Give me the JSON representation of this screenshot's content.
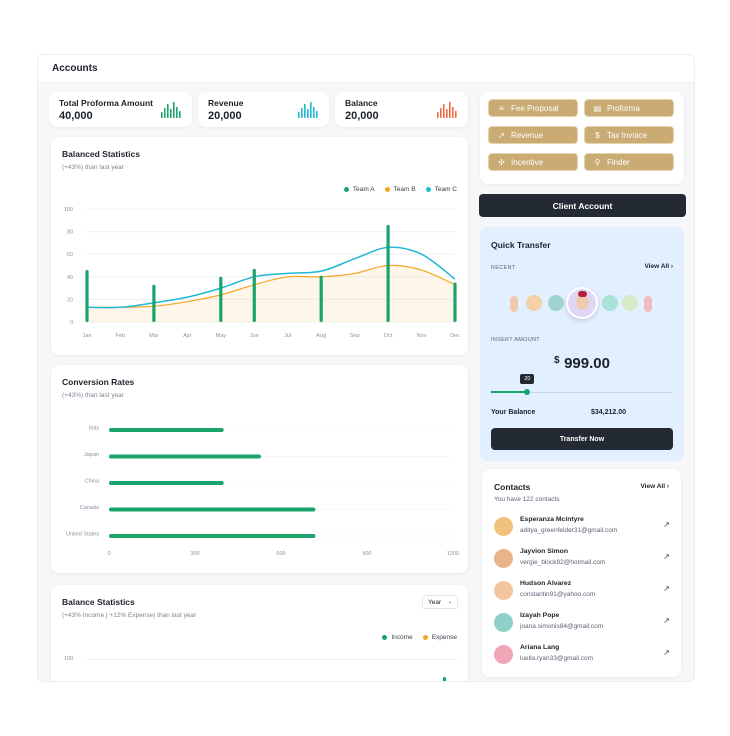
{
  "header": {
    "title": "Accounts"
  },
  "stats": [
    {
      "label": "Total Proforma Amount",
      "value": "40,000",
      "color": "#1aa36b"
    },
    {
      "label": "Revenue",
      "value": "20,000",
      "color": "#22b7d6"
    },
    {
      "label": "Balance",
      "value": "20,000",
      "color": "#ef6a45"
    }
  ],
  "balanced_statistics": {
    "title": "Balanced Statistics",
    "subtitle": "(+43%) than last year",
    "legend": [
      "Team A",
      "Team B",
      "Team C"
    ]
  },
  "conversion_rates": {
    "title": "Conversion Rates",
    "subtitle": "(+43%) than last year"
  },
  "balance_statistics": {
    "title": "Balance Statistics",
    "subtitle": "(+43% Income | +12% Expense) than last year",
    "select_value": "Year",
    "legend": [
      "Income",
      "Expense"
    ],
    "y_tick": "100"
  },
  "quick_links": [
    {
      "label": "Fee Proposal",
      "icon": "fee-proposal-icon",
      "glyph": "≡"
    },
    {
      "label": "Proforma",
      "icon": "document-icon",
      "glyph": "▤"
    },
    {
      "label": "Revenue",
      "icon": "trend-icon",
      "glyph": "↗"
    },
    {
      "label": "Tax Invoice",
      "icon": "invoice-icon",
      "glyph": "$"
    },
    {
      "label": "Incentive",
      "icon": "incentive-icon",
      "glyph": "✣"
    },
    {
      "label": "Finder",
      "icon": "search-icon",
      "glyph": "⚲"
    }
  ],
  "client_account": {
    "label": "Client Account"
  },
  "quick_transfer": {
    "title": "Quick Transfer",
    "recent_label": "RECENT",
    "view_all": "View All",
    "insert_amount_label": "INSERT AMOUNT",
    "currency": "$",
    "amount": "999.00",
    "slider_value": "20",
    "slider_fraction": 0.2,
    "your_balance_label": "Your Balance",
    "your_balance": "$34,212.00",
    "transfer_button": "Transfer Now"
  },
  "contacts": {
    "title": "Contacts",
    "subtitle": "You have 122 contacts",
    "view_all": "View All",
    "items": [
      {
        "name": "Esperanza Mcintyre",
        "email": "aditya_greenfelder31@gmail.com",
        "avatar_color": "#f1c27d"
      },
      {
        "name": "Jayvion Simon",
        "email": "vergie_block82@hotmail.com",
        "avatar_color": "#e9b48a"
      },
      {
        "name": "Hudson Alvarez",
        "email": "constantin91@yahoo.com",
        "avatar_color": "#f3c6a0"
      },
      {
        "name": "Izayah Pope",
        "email": "joana.simonis84@gmail.com",
        "avatar_color": "#8fd0c8"
      },
      {
        "name": "Ariana Lang",
        "email": "luella.ryan33@gmail.com",
        "avatar_color": "#f0a6b6"
      }
    ]
  },
  "chart_data": [
    {
      "type": "line",
      "title": "Balanced Statistics",
      "categories": [
        "Jan",
        "Feb",
        "Mar",
        "Apr",
        "May",
        "Jun",
        "Jul",
        "Aug",
        "Sep",
        "Oct",
        "Nov",
        "Dec"
      ],
      "ylim": [
        0,
        100
      ],
      "yticks": [
        0,
        20,
        40,
        60,
        80,
        100
      ],
      "series": [
        {
          "name": "Team A",
          "kind": "bar",
          "color": "#1aa36b",
          "values": [
            46,
            null,
            33,
            null,
            40,
            47,
            null,
            41,
            null,
            86,
            null,
            35
          ]
        },
        {
          "name": "Team B",
          "kind": "area",
          "color": "#f5a623",
          "values": [
            13,
            13,
            14,
            18,
            24,
            33,
            40,
            40,
            43,
            50,
            46,
            33
          ]
        },
        {
          "name": "Team C",
          "kind": "line",
          "color": "#22b7d6",
          "values": [
            13,
            13,
            17,
            22,
            30,
            40,
            43,
            45,
            56,
            66,
            60,
            38
          ]
        }
      ],
      "grid": true,
      "legend_position": "top-right"
    },
    {
      "type": "bar",
      "title": "Conversion Rates",
      "orientation": "horizontal",
      "categories": [
        "Italy",
        "Japan",
        "China",
        "Canada",
        "United States"
      ],
      "values": [
        400,
        530,
        400,
        720,
        720
      ],
      "xlim": [
        0,
        1200
      ],
      "xticks": [
        0,
        300,
        600,
        900,
        1200
      ],
      "color": "#1aa36b"
    }
  ]
}
